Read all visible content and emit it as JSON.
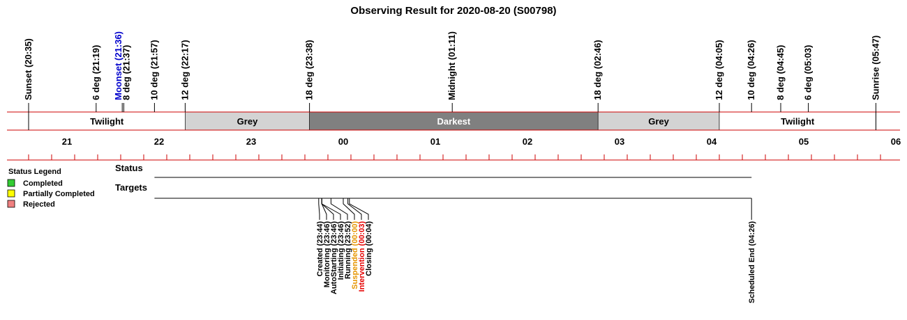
{
  "chart_data": {
    "type": "timeline",
    "title": "Observing Result for 2020-08-20 (S00798)",
    "time_axis": {
      "start": "20:20",
      "end": "06:00",
      "hour_labels": [
        "21",
        "22",
        "23",
        "00",
        "01",
        "02",
        "03",
        "04",
        "05",
        "06"
      ],
      "minor_tick_minutes": 15
    },
    "sky_events": [
      {
        "label": "Sunset (20:35)",
        "time": "20:35",
        "color": "#000000"
      },
      {
        "label": "6 deg (21:19)",
        "time": "21:19",
        "color": "#000000"
      },
      {
        "label": "Moonset (21:36)",
        "time": "21:36",
        "color": "#0000cc"
      },
      {
        "label": "8 deg (21:37)",
        "time": "21:37",
        "color": "#000000"
      },
      {
        "label": "10 deg (21:57)",
        "time": "21:57",
        "color": "#000000"
      },
      {
        "label": "12 deg (22:17)",
        "time": "22:17",
        "color": "#000000"
      },
      {
        "label": "18 deg (23:38)",
        "time": "23:38",
        "color": "#000000"
      },
      {
        "label": "Midnight (01:11)",
        "time": "01:11",
        "color": "#000000"
      },
      {
        "label": "18 deg (02:46)",
        "time": "02:46",
        "color": "#000000"
      },
      {
        "label": "12 deg (04:05)",
        "time": "04:05",
        "color": "#000000"
      },
      {
        "label": "10 deg (04:26)",
        "time": "04:26",
        "color": "#000000"
      },
      {
        "label": "8 deg (04:45)",
        "time": "04:45",
        "color": "#000000"
      },
      {
        "label": "6 deg (05:03)",
        "time": "05:03",
        "color": "#000000"
      },
      {
        "label": "Sunrise (05:47)",
        "time": "05:47",
        "color": "#000000"
      }
    ],
    "sky_bands": [
      {
        "label": "Twilight",
        "start": "20:35",
        "end": "22:17",
        "fill": "#ffffff",
        "text_color": "#000000"
      },
      {
        "label": "Grey",
        "start": "22:17",
        "end": "23:38",
        "fill": "#d3d3d3",
        "text_color": "#000000"
      },
      {
        "label": "Darkest",
        "start": "23:38",
        "end": "02:46",
        "fill": "#808080",
        "text_color": "#ffffff"
      },
      {
        "label": "Grey",
        "start": "02:46",
        "end": "04:05",
        "fill": "#d3d3d3",
        "text_color": "#000000"
      },
      {
        "label": "Twilight",
        "start": "04:05",
        "end": "05:47",
        "fill": "#ffffff",
        "text_color": "#000000"
      }
    ],
    "rows": [
      {
        "label": "Status",
        "start": "21:57",
        "end": "04:26"
      },
      {
        "label": "Targets",
        "start": "21:57",
        "end": "04:26"
      }
    ],
    "status_events": [
      {
        "label": "Created (23:44)",
        "time": "23:44",
        "color": "#000000"
      },
      {
        "label": "Monitoring (23:46)",
        "time": "23:46",
        "color": "#000000"
      },
      {
        "label": "AutoStarting (23:46)",
        "time": "23:46",
        "color": "#000000"
      },
      {
        "label": "Initiating (23:46)",
        "time": "23:46",
        "color": "#000000"
      },
      {
        "label": "Running (23:52)",
        "time": "23:52",
        "color": "#000000"
      },
      {
        "label": "Suspended (00:00)",
        "time": "00:00",
        "color": "#e69500"
      },
      {
        "label": "Intervention (00:03)",
        "time": "00:03",
        "color": "#e60000"
      },
      {
        "label": "Closing (00:04)",
        "time": "00:04",
        "color": "#000000"
      }
    ],
    "end_event": {
      "label": "Scheduled End (04:26)",
      "time": "04:26",
      "color": "#000000"
    },
    "legend": {
      "title": "Status Legend",
      "position": "left",
      "items": [
        {
          "label": "Completed",
          "color": "#33cc33"
        },
        {
          "label": "Partially Completed",
          "color": "#ffff00"
        },
        {
          "label": "Rejected",
          "color": "#f08080"
        }
      ]
    },
    "colors": {
      "axis": "#cc0000",
      "line": "#000000"
    }
  }
}
